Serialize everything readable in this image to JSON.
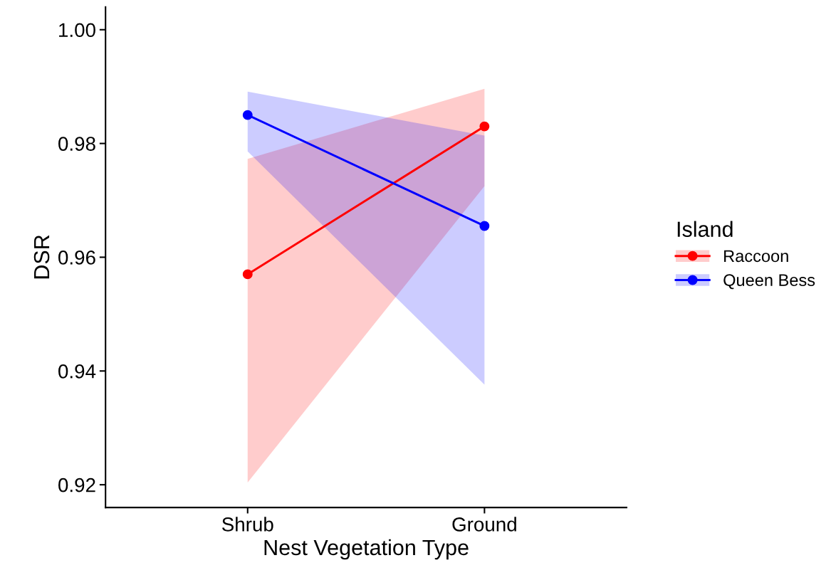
{
  "chart_data": {
    "type": "line",
    "xlabel": "Nest Vegetation Type",
    "ylabel": "DSR",
    "legend_title": "Island",
    "categories": [
      "Shrub",
      "Ground"
    ],
    "series": [
      {
        "name": "Raccoon",
        "color": "#ff0000",
        "values": [
          0.957,
          0.983
        ],
        "lower": [
          0.9204,
          0.9725
        ],
        "upper": [
          0.9773,
          0.9896
        ]
      },
      {
        "name": "Queen Bess",
        "color": "#0000ff",
        "values": [
          0.985,
          0.9655
        ],
        "lower": [
          0.9786,
          0.9376
        ],
        "upper": [
          0.9891,
          0.9814
        ]
      }
    ],
    "ylim": [
      0.916,
      1.004
    ],
    "yticks": [
      {
        "value": 0.92,
        "label": "0.92"
      },
      {
        "value": 0.94,
        "label": "0.94"
      },
      {
        "value": 0.96,
        "label": "0.96"
      },
      {
        "value": 0.98,
        "label": "0.98"
      },
      {
        "value": 1.0,
        "label": "1.00"
      }
    ],
    "grid": false,
    "legend": "right",
    "marker": "circle",
    "line_style": "solid"
  }
}
